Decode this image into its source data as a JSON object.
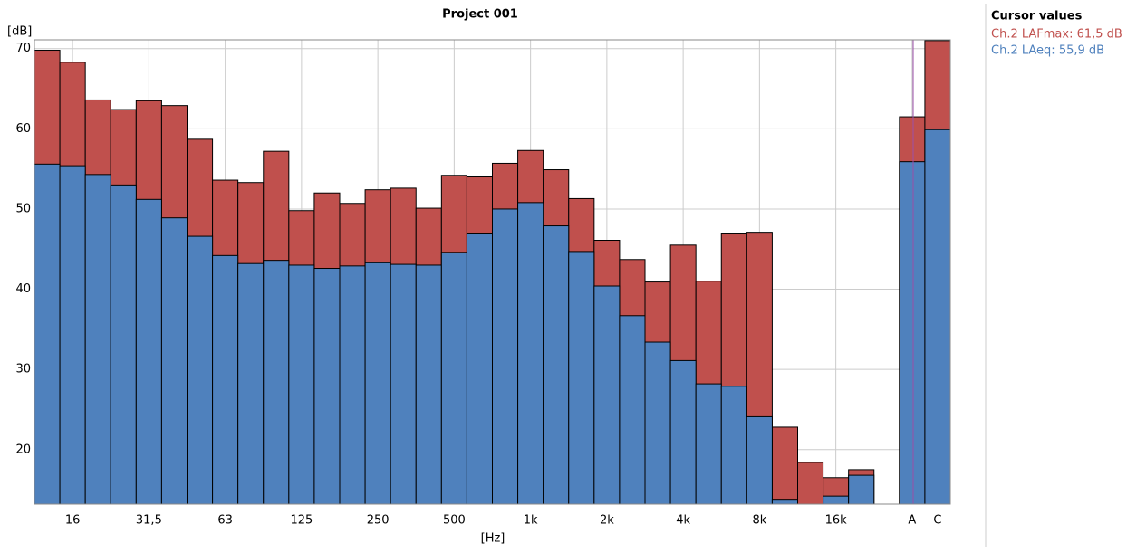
{
  "chart_data": {
    "type": "overlap-bar",
    "title": "Project 001",
    "y_label": "[dB]",
    "x_label": "[Hz]",
    "categories": [
      null,
      "16",
      null,
      null,
      "31,5",
      null,
      null,
      "63",
      null,
      null,
      "125",
      null,
      null,
      "250",
      null,
      null,
      "500",
      null,
      null,
      "1k",
      null,
      null,
      "2k",
      null,
      null,
      "4k",
      null,
      null,
      "8k",
      null,
      null,
      "16k",
      null,
      null,
      "A",
      "C"
    ],
    "series": [
      {
        "color": "#c0504d",
        "values": [
          69.8,
          68.3,
          63.6,
          62.4,
          63.5,
          62.9,
          58.7,
          53.6,
          53.3,
          57.2,
          49.8,
          52.0,
          50.7,
          52.4,
          52.6,
          50.1,
          54.2,
          54.0,
          55.7,
          57.3,
          54.9,
          51.3,
          46.1,
          43.7,
          40.9,
          45.5,
          41.0,
          47.0,
          47.1,
          22.8,
          18.4,
          16.5,
          17.5,
          null,
          61.5,
          71.0
        ]
      },
      {
        "color": "#4f81bd",
        "values": [
          55.6,
          55.4,
          54.3,
          53.0,
          51.2,
          48.9,
          46.6,
          44.2,
          43.2,
          43.6,
          43.0,
          42.6,
          42.9,
          43.3,
          43.1,
          43.0,
          44.6,
          47.0,
          50.0,
          50.8,
          47.9,
          44.7,
          40.4,
          36.7,
          33.4,
          31.1,
          28.2,
          27.9,
          24.1,
          13.8,
          13.0,
          14.2,
          16.8,
          null,
          55.9,
          59.9
        ]
      }
    ],
    "ylim": [
      13.2,
      71.1
    ],
    "yticks": [
      20,
      30,
      40,
      50,
      60,
      70
    ],
    "grid": true,
    "cursor_values": {
      "title": "Cursor values",
      "entries": [
        {
          "text": "Ch.2 LAFmax: 61,5 dB",
          "color": "#c0504d"
        },
        {
          "text": "Ch.2 LAeq: 55,9 dB",
          "color": "#4f81bd"
        }
      ]
    }
  }
}
